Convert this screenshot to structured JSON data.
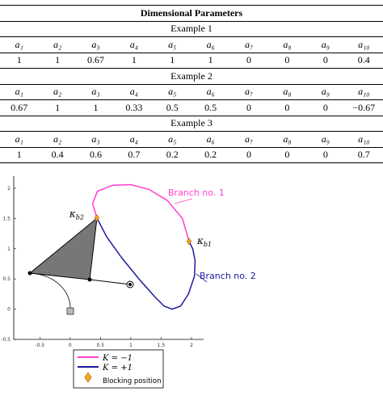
{
  "table": {
    "title": "Dimensional Parameters",
    "examples": [
      {
        "label": "Example 1",
        "headers": [
          "a₁",
          "a₂",
          "a₃",
          "a₄",
          "a₅",
          "a₆",
          "a₇",
          "a₈",
          "a₉",
          "a₁₀"
        ],
        "values": [
          "1",
          "1",
          "0.67",
          "1",
          "1",
          "1",
          "0",
          "0",
          "0",
          "0.4"
        ]
      },
      {
        "label": "Example 2",
        "headers": [
          "a₁",
          "a₂",
          "a₃",
          "a₄",
          "a₅",
          "a₆",
          "a₇",
          "a₈",
          "a₉",
          "a₁₀"
        ],
        "values": [
          "0.67",
          "1",
          "1",
          "0.33",
          "0.5",
          "0.5",
          "0",
          "0",
          "0",
          "−0.67"
        ]
      },
      {
        "label": "Example 3",
        "headers": [
          "a₁",
          "a₂",
          "a₃",
          "a₄",
          "a₅",
          "a₆",
          "a₇",
          "a₈",
          "a₉",
          "a₁₀"
        ],
        "values": [
          "1",
          "0.4",
          "0.6",
          "0.7",
          "0.2",
          "0.2",
          "0",
          "0",
          "0",
          "0.7"
        ]
      }
    ]
  },
  "chart_data": {
    "type": "line",
    "xlim": [
      -0.93,
      2.2
    ],
    "ylim": [
      -0.5,
      2.2
    ],
    "xticks": [
      -0.5,
      0,
      0.5,
      1,
      1.5,
      2
    ],
    "yticks": [
      -0.5,
      0,
      0.5,
      1,
      1.5,
      2
    ],
    "series": [
      {
        "name": "K = −1",
        "color": "#ff3fd0",
        "x": [
          0.44,
          0.37,
          0.45,
          0.7,
          1.0,
          1.3,
          1.6,
          1.85,
          1.96
        ],
        "values": [
          1.51,
          1.75,
          1.95,
          2.05,
          2.06,
          1.98,
          1.8,
          1.5,
          1.12
        ]
      },
      {
        "name": "K = +1",
        "color": "#1a1a9c",
        "x": [
          0.44,
          0.6,
          0.85,
          1.15,
          1.4,
          1.55,
          1.68,
          1.82,
          1.95,
          2.05,
          2.06,
          2.02,
          1.96
        ],
        "values": [
          1.51,
          1.2,
          0.85,
          0.48,
          0.2,
          0.05,
          0.0,
          0.05,
          0.25,
          0.55,
          0.8,
          1.0,
          1.12
        ]
      }
    ],
    "marker": {
      "name": "Blocking position",
      "color": "#f5a623"
    },
    "annotations": [
      {
        "text": "Branch no. 1",
        "color": "#ff3fd0"
      },
      {
        "text": "Branch no. 2",
        "color": "#1a1a9c"
      }
    ],
    "point_labels": [
      {
        "symbol": "κ",
        "subscript": "b2"
      },
      {
        "symbol": "κ",
        "subscript": "b1"
      }
    ]
  }
}
